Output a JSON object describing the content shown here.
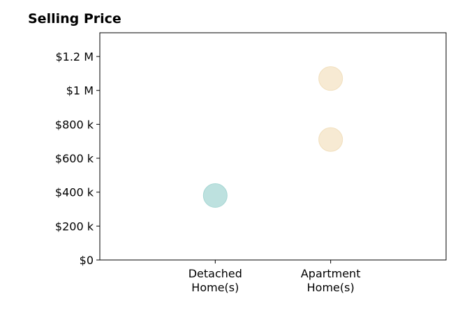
{
  "chart_data": {
    "type": "scatter",
    "title": "Selling Price",
    "categories": [
      "Detached\nHome(s)",
      "Apartment\nHome(s)"
    ],
    "y_ticks": [
      "$0",
      "$200 k",
      "$400 k",
      "$600 k",
      "$800 k",
      "$1 M",
      "$1.2 M"
    ],
    "y_tick_values": [
      0,
      200000,
      400000,
      600000,
      800000,
      1000000,
      1200000
    ],
    "ylim": [
      0,
      1340000
    ],
    "x_range": [
      -1,
      2
    ],
    "grid": false,
    "points": [
      {
        "category": "Detached\nHome(s)",
        "y": 380000,
        "color": "#bde1df",
        "edge": "#a6d6d3"
      },
      {
        "category": "Apartment\nHome(s)",
        "y": 710000,
        "color": "#f7ead3",
        "edge": "#f1dfbd"
      },
      {
        "category": "Apartment\nHome(s)",
        "y": 1070000,
        "color": "#f7ead3",
        "edge": "#f1dfbd"
      }
    ]
  }
}
